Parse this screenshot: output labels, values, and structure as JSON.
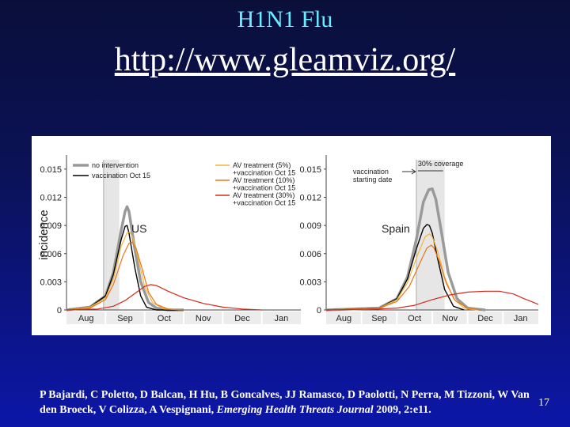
{
  "slide": {
    "title": "H1N1 Flu",
    "link": "http://www.gleamviz.org/",
    "citation_main": "P Bajardi, C Poletto, D Balcan, H Hu, B Goncalves, JJ Ramasco, D Paolotti, N Perra, M Tizzoni, W Van den Broeck, V Colizza, A Vespignani,",
    "citation_journal": "Emerging Health Threats Journal",
    "citation_tail": "2009, 2:e11.",
    "page_number": "17"
  },
  "colors": {
    "no_intervention": "#9a9a9a",
    "vaccination": "#000000",
    "av5": "#f2b63a",
    "av10": "#e8741a",
    "av30": "#d42a1a",
    "highlight_band": "#e6e6e6"
  },
  "chart_data": [
    {
      "type": "line",
      "panel_label": "US",
      "ylabel": "incidence",
      "xlabel": "",
      "x_tick_labels": [
        "Aug",
        "Sep",
        "Oct",
        "Nov",
        "Dec",
        "Jan"
      ],
      "y_ticks": [
        "0",
        "0.003",
        "0.006",
        "0.009",
        "0.012",
        "0.015"
      ],
      "ylim": [
        0,
        0.016
      ],
      "xlim": [
        0,
        6
      ],
      "shaded_band": [
        0.95,
        1.35
      ],
      "vaccination_start_line": 0.95,
      "legend": [
        {
          "text": "no intervention",
          "series": 0
        },
        {
          "text": "vaccination Oct 15",
          "series": 1
        },
        {
          "text": "AV treatment (5%)",
          "series": 2
        },
        {
          "text": "+vaccination Oct 15",
          "series": 2
        },
        {
          "text": "AV treatment (10%)",
          "series": 3
        },
        {
          "text": "+vaccination Oct 15",
          "series": 3
        },
        {
          "text": "AV treatment (30%)",
          "series": 4
        },
        {
          "text": "+vaccination Oct 15",
          "series": 4
        }
      ],
      "series": [
        {
          "name": "no intervention",
          "color": "#9a9a9a",
          "width": 3.5,
          "x": [
            0,
            0.6,
            1.0,
            1.2,
            1.4,
            1.5,
            1.55,
            1.6,
            1.75,
            1.9,
            2.1,
            2.3,
            2.6,
            3.0
          ],
          "y": [
            0,
            0.0003,
            0.0015,
            0.004,
            0.0085,
            0.0105,
            0.011,
            0.0105,
            0.0065,
            0.003,
            0.0008,
            0.0002,
            0,
            0
          ]
        },
        {
          "name": "vaccination Oct 15",
          "color": "#000000",
          "width": 1.4,
          "x": [
            0,
            0.6,
            1.0,
            1.2,
            1.4,
            1.5,
            1.55,
            1.6,
            1.75,
            1.9,
            2.05,
            2.3,
            2.6,
            3.0
          ],
          "y": [
            0,
            0.0003,
            0.0015,
            0.0038,
            0.0075,
            0.0089,
            0.009,
            0.0082,
            0.0045,
            0.0015,
            0.0003,
            0,
            0,
            0
          ]
        },
        {
          "name": "AV treatment (5%) +vaccination Oct 15",
          "color": "#f2b63a",
          "width": 1.2,
          "x": [
            0,
            0.6,
            1.0,
            1.2,
            1.4,
            1.55,
            1.62,
            1.7,
            1.85,
            2.0,
            2.2,
            2.5,
            3.0
          ],
          "y": [
            0,
            0.0003,
            0.0013,
            0.0033,
            0.0068,
            0.0082,
            0.0083,
            0.0077,
            0.0052,
            0.0025,
            0.0008,
            0.0001,
            0
          ]
        },
        {
          "name": "AV treatment (10%) +vaccination Oct 15",
          "color": "#e8741a",
          "width": 1.2,
          "x": [
            0,
            0.6,
            1.0,
            1.2,
            1.45,
            1.6,
            1.68,
            1.78,
            1.95,
            2.1,
            2.3,
            2.6,
            3.0
          ],
          "y": [
            0,
            0.0002,
            0.0011,
            0.0027,
            0.0058,
            0.0071,
            0.0072,
            0.0066,
            0.0042,
            0.0019,
            0.0006,
            0.0001,
            0
          ]
        },
        {
          "name": "AV treatment (30%) +vaccination Oct 15",
          "color": "#d42a1a",
          "width": 1.2,
          "x": [
            0,
            0.8,
            1.2,
            1.5,
            1.8,
            2.0,
            2.15,
            2.3,
            2.6,
            3.0,
            3.5,
            4.0,
            4.5,
            5.0
          ],
          "y": [
            0,
            0.0001,
            0.0004,
            0.001,
            0.0019,
            0.0025,
            0.0027,
            0.0026,
            0.002,
            0.0013,
            0.0007,
            0.0003,
            0.0001,
            0
          ]
        }
      ]
    },
    {
      "type": "line",
      "panel_label": "Spain",
      "ylabel": "",
      "xlabel": "",
      "x_tick_labels": [
        "Aug",
        "Sep",
        "Oct",
        "Nov",
        "Dec",
        "Jan"
      ],
      "y_ticks": [
        "0",
        "0.003",
        "0.006",
        "0.009",
        "0.012",
        "0.015"
      ],
      "ylim": [
        0,
        0.016
      ],
      "xlim": [
        0,
        6
      ],
      "shaded_band": [
        2.55,
        3.35
      ],
      "vaccination_start_line": 2.55,
      "annotations": [
        "vaccination starting date",
        "30% coverage"
      ],
      "series": [
        {
          "name": "no intervention",
          "color": "#9a9a9a",
          "width": 3.5,
          "x": [
            0,
            1.5,
            2.0,
            2.3,
            2.55,
            2.75,
            2.9,
            3.0,
            3.1,
            3.25,
            3.45,
            3.7,
            4.0,
            4.5
          ],
          "y": [
            0,
            0.0002,
            0.0012,
            0.0035,
            0.0075,
            0.0115,
            0.0128,
            0.0129,
            0.0118,
            0.0085,
            0.004,
            0.0012,
            0.0002,
            0
          ]
        },
        {
          "name": "vaccination Oct 15",
          "color": "#000000",
          "width": 1.4,
          "x": [
            0,
            1.5,
            2.0,
            2.3,
            2.55,
            2.75,
            2.85,
            2.92,
            3.0,
            3.15,
            3.35,
            3.6,
            3.9
          ],
          "y": [
            0,
            0.0002,
            0.0012,
            0.0033,
            0.0065,
            0.0087,
            0.0091,
            0.009,
            0.0082,
            0.0055,
            0.0022,
            0.0004,
            0
          ]
        },
        {
          "name": "AV treatment (5%) +vaccination Oct 15",
          "color": "#f2b63a",
          "width": 1.2,
          "x": [
            0,
            1.5,
            2.0,
            2.3,
            2.6,
            2.8,
            2.92,
            3.0,
            3.15,
            3.35,
            3.6,
            3.9,
            4.3
          ],
          "y": [
            0,
            0.0002,
            0.0011,
            0.0029,
            0.006,
            0.0078,
            0.0081,
            0.0078,
            0.0063,
            0.0035,
            0.0012,
            0.0002,
            0
          ]
        },
        {
          "name": "AV treatment (10%) +vaccination Oct 15",
          "color": "#e8741a",
          "width": 1.2,
          "x": [
            0,
            1.5,
            2.0,
            2.35,
            2.65,
            2.85,
            2.97,
            3.05,
            3.2,
            3.4,
            3.65,
            4.0,
            4.4
          ],
          "y": [
            0,
            0.0002,
            0.0009,
            0.0025,
            0.005,
            0.0066,
            0.0069,
            0.0066,
            0.0052,
            0.0028,
            0.001,
            0.0002,
            0
          ]
        },
        {
          "name": "AV treatment (30%) +vaccination Oct 15",
          "color": "#d42a1a",
          "width": 1.2,
          "x": [
            0,
            1.5,
            2.0,
            2.5,
            3.0,
            3.5,
            4.0,
            4.5,
            4.9,
            5.3,
            5.6,
            5.8,
            6.0
          ],
          "y": [
            0,
            0.0001,
            0.0002,
            0.0005,
            0.0011,
            0.0016,
            0.0019,
            0.002,
            0.002,
            0.0017,
            0.0012,
            0.0009,
            0.0006
          ]
        }
      ]
    }
  ]
}
